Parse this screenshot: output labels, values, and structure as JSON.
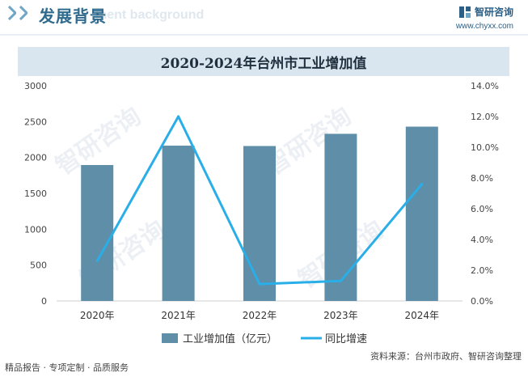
{
  "header": {
    "section_title": "发展背景",
    "section_subtitle": "ment background",
    "brand_name": "智研咨询",
    "brand_url": "www.chyxx.com"
  },
  "chart_data": {
    "type": "bar",
    "title": "2020-2024年台州市工业增加值",
    "categories": [
      "2020年",
      "2021年",
      "2022年",
      "2023年",
      "2024年"
    ],
    "series": [
      {
        "name": "工业增加值（亿元）",
        "type": "bar",
        "axis": "left",
        "values": [
          1895,
          2165,
          2160,
          2330,
          2430
        ],
        "color": "#5e8ea8"
      },
      {
        "name": "同比增速",
        "type": "line",
        "axis": "right",
        "values": [
          2.6,
          12.0,
          1.1,
          1.3,
          7.6
        ],
        "color": "#29aee8"
      }
    ],
    "left_axis": {
      "min": 0,
      "max": 3000,
      "ticks": [
        "0",
        "500",
        "1000",
        "1500",
        "2000",
        "2500",
        "3000"
      ]
    },
    "right_axis": {
      "min": 0,
      "max": 14,
      "ticks": [
        "0.0%",
        "2.0%",
        "4.0%",
        "6.0%",
        "8.0%",
        "10.0%",
        "12.0%",
        "14.0%"
      ]
    },
    "legend_position": "bottom"
  },
  "legend": {
    "bar_label": "工业增加值（亿元）",
    "line_label": "同比增速"
  },
  "watermark": {
    "text": "智研咨询"
  },
  "footer": {
    "left": "精品报告 · 专项定制 · 品质服务",
    "right": "资料来源：台州市政府、智研咨询整理"
  }
}
